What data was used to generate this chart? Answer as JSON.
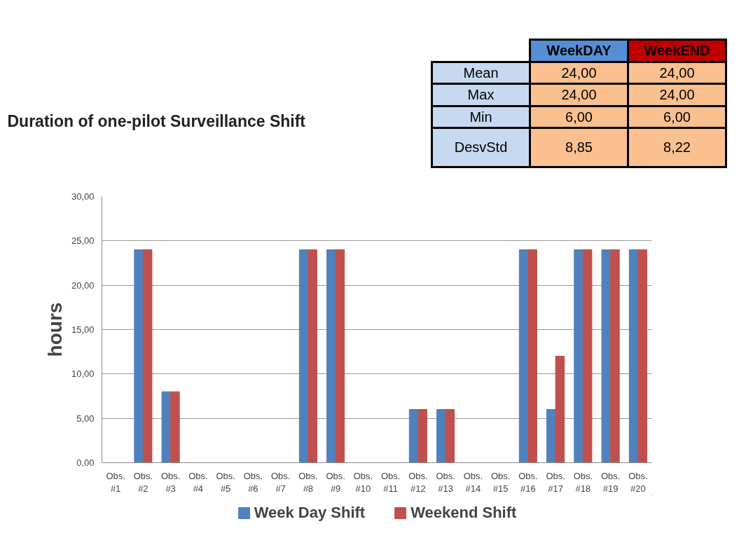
{
  "chart_data": {
    "type": "bar",
    "title": "Duration of one-pilot Surveillance Shift",
    "ylabel": "hours",
    "categories": [
      "Obs. #1",
      "Obs. #2",
      "Obs. #3",
      "Obs. #4",
      "Obs. #5",
      "Obs. #6",
      "Obs. #7",
      "Obs. #8",
      "Obs. #9",
      "Obs. #10",
      "Obs. #11",
      "Obs. #12",
      "Obs. #13",
      "Obs. #14",
      "Obs. #15",
      "Obs. #16",
      "Obs. #17",
      "Obs. #18",
      "Obs. #19",
      "Obs. #20"
    ],
    "series": [
      {
        "name": "Week Day Shift",
        "color": "#4f81bd",
        "values": [
          null,
          24,
          8,
          null,
          null,
          null,
          null,
          24,
          24,
          null,
          null,
          6,
          6,
          null,
          null,
          24,
          6,
          24,
          24,
          24
        ]
      },
      {
        "name": "Weekend Shift",
        "color": "#c0504d",
        "values": [
          null,
          24,
          8,
          null,
          null,
          null,
          null,
          24,
          24,
          null,
          null,
          6,
          6,
          null,
          null,
          24,
          12,
          24,
          24,
          24
        ]
      }
    ],
    "ylim": [
      0,
      30
    ],
    "yticks": [
      {
        "value": 0,
        "label": "0,00"
      },
      {
        "value": 5,
        "label": "5,00"
      },
      {
        "value": 10,
        "label": "10,00"
      },
      {
        "value": 15,
        "label": "15,00"
      },
      {
        "value": 20,
        "label": "20,00"
      },
      {
        "value": 25,
        "label": "25,00"
      },
      {
        "value": 30,
        "label": "30,00"
      }
    ],
    "grid": "y",
    "legend": "bottom",
    "annotations": [
      "WeekDAY",
      "WeekEND",
      "Mean",
      "24,00",
      "24,00",
      "Max",
      "24,00",
      "24,00",
      "Min",
      "6,00",
      "6,00",
      "DesvStd",
      "8,85",
      "8,22"
    ]
  }
}
